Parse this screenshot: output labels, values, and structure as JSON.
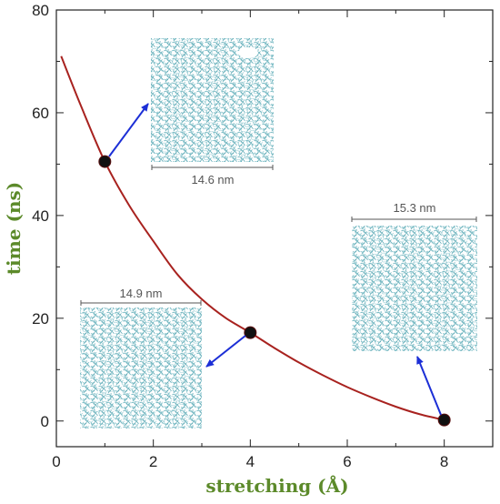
{
  "chart_data": {
    "type": "line",
    "xlabel": "stretching (Å)",
    "ylabel": "time (ns)",
    "xlim": [
      0,
      9
    ],
    "ylim": [
      -5,
      80
    ],
    "x_ticks": [
      0,
      2,
      4,
      6,
      8
    ],
    "y_ticks": [
      0,
      20,
      40,
      60,
      80
    ],
    "grid": false,
    "series": [
      {
        "values_x": [
          0.1,
          0.5,
          1.0,
          1.5,
          2.0,
          2.5,
          3.0,
          3.5,
          4.0,
          4.5,
          5.0,
          5.5,
          6.0,
          6.5,
          7.0,
          7.5,
          8.0
        ],
        "values_y": [
          71.0,
          61.5,
          50.5,
          42.0,
          35.0,
          28.5,
          23.7,
          20.0,
          17.2,
          14.2,
          11.4,
          8.9,
          6.6,
          4.6,
          2.8,
          1.3,
          0.2
        ]
      }
    ],
    "markers": [
      {
        "x": 1,
        "y": 50.5
      },
      {
        "x": 4,
        "y": 17.2
      },
      {
        "x": 8,
        "y": 0.2
      }
    ],
    "insets": [
      {
        "scale_label": "14.6 nm",
        "attached_to_marker": 0
      },
      {
        "scale_label": "14.9 nm",
        "attached_to_marker": 1
      },
      {
        "scale_label": "15.3 nm",
        "attached_to_marker": 2
      }
    ],
    "colors": {
      "curve": "#a8221f",
      "marker": "#111111",
      "arrow": "#1c2fd6",
      "axis_title": "#5c8a2a",
      "inset_texture": "#5aa9b5",
      "scale_bar": "#555555"
    }
  }
}
